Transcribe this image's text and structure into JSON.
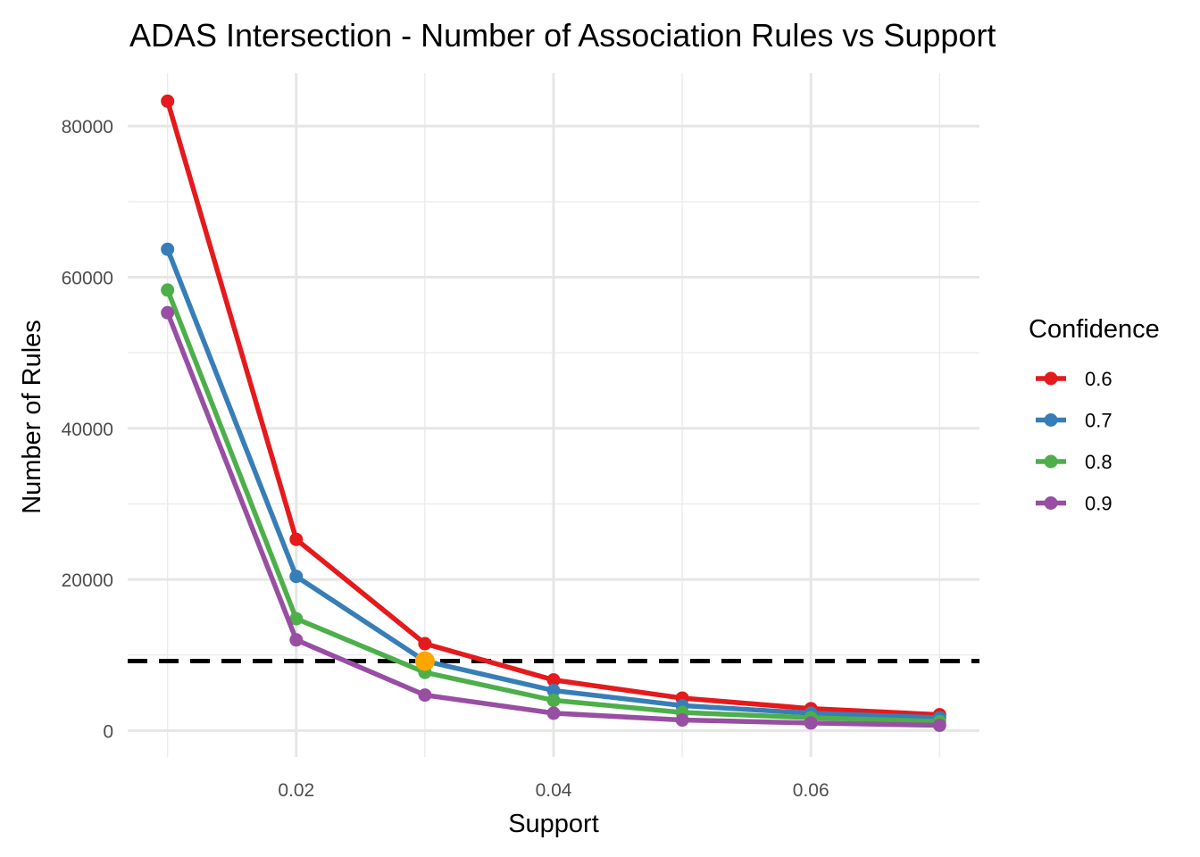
{
  "chart_data": {
    "type": "line",
    "title": "ADAS Intersection - Number of Association Rules vs Support",
    "xlabel": "Support",
    "ylabel": "Number of Rules",
    "x": [
      0.01,
      0.02,
      0.03,
      0.04,
      0.05,
      0.06,
      0.07
    ],
    "xlim": [
      0.0069,
      0.0731
    ],
    "ylim": [
      -3500,
      87000
    ],
    "x_ticks": [
      "0.02",
      "0.04",
      "0.06"
    ],
    "y_ticks": [
      "0",
      "20000",
      "40000",
      "60000",
      "80000"
    ],
    "grid": true,
    "legend": {
      "title": "Confidence",
      "position": "right"
    },
    "series": [
      {
        "name": "0.6",
        "color": "#e41a1c",
        "values": [
          83300,
          25300,
          11500,
          6700,
          4300,
          2900,
          2100
        ]
      },
      {
        "name": "0.7",
        "color": "#377eb8",
        "values": [
          63700,
          20400,
          9200,
          5300,
          3300,
          2300,
          1700
        ]
      },
      {
        "name": "0.8",
        "color": "#4daf4a",
        "values": [
          58300,
          14800,
          7700,
          4000,
          2400,
          1700,
          1200
        ]
      },
      {
        "name": "0.9",
        "color": "#984ea3",
        "values": [
          55300,
          12000,
          4700,
          2300,
          1400,
          1000,
          700
        ]
      }
    ],
    "reference_line": {
      "y": 9200,
      "style": "dashed",
      "color": "#000000"
    },
    "highlight_point": {
      "x": 0.03,
      "y": 9200,
      "color": "#ffa500"
    }
  }
}
